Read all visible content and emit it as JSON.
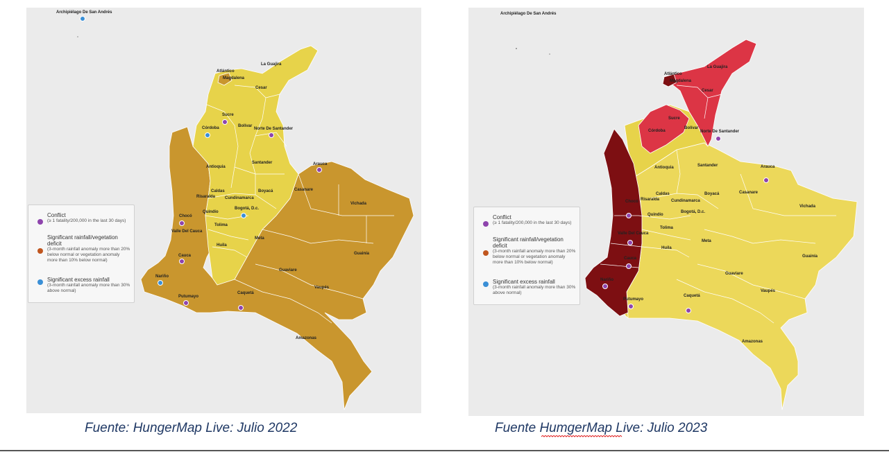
{
  "maps": [
    {
      "caption": "Fuente: HungerMap Live: Julio 2022",
      "colors": {
        "north": "#e7d34a",
        "south": "#c9962e",
        "highlight": "#c9962e",
        "border": "#ffffff"
      },
      "labels": [
        "Archipiélago De San Andrés",
        "La Guajira",
        "Atlántico",
        "Magdalena",
        "Cesar",
        "Sucre",
        "Córdoba",
        "Bolívar",
        "Norte De Santander",
        "Antioquia",
        "Santander",
        "Arauca",
        "Casanare",
        "Vichada",
        "Caldas",
        "Risaralda",
        "Chocó",
        "Boyacá",
        "Cundinamarca",
        "Quindío",
        "Bogotá, D.c.",
        "Tolima",
        "Valle Del Cauca",
        "Huila",
        "Meta",
        "Guainía",
        "Cauca",
        "Guaviare",
        "Nariño",
        "Vaupés",
        "Putumayo",
        "Caquetá",
        "Amazonas"
      ],
      "legend": {
        "conflict": {
          "title": "Conflict",
          "sub": "(≥ 1 fatality/200,000 in the last 30 days)",
          "color": "#8e44ad"
        },
        "deficit": {
          "title": "Significant rainfall/vegetation deficit",
          "sub": "(3-month rainfall anomaly more than 20% below normal or vegetation anomaly more than 10% below normal)",
          "color": "#c0561f"
        },
        "excess": {
          "title": "Significant excess rainfall",
          "sub": "(3-month rainfall anomaly more than 30% above normal)",
          "color": "#3a8fd6"
        }
      }
    },
    {
      "caption": "Fuente HumgerMap Live: Julio 2023",
      "caption_parts": [
        "Fuente ",
        "HumgerMap",
        " Live: Julio 2023"
      ],
      "colors": {
        "north": "#e7d34a",
        "south": "#ecd85a",
        "red": "#dc3545",
        "darkred": "#7d0f12",
        "border": "#ffffff"
      },
      "labels": [
        "Archipiélago De San Andrés",
        "La Guajira",
        "Atlántico",
        "Magdalena",
        "Cesar",
        "Sucre",
        "Córdoba",
        "Bolívar",
        "Norte De Santander",
        "Antioquia",
        "Santander",
        "Arauca",
        "Casanare",
        "Vichada",
        "Caldas",
        "Risaralda",
        "Chocó",
        "Boyacá",
        "Cundinamarca",
        "Quindío",
        "Bogotá, D.c.",
        "Tolima",
        "Valle Del Cauca",
        "Huila",
        "Meta",
        "Guainía",
        "Cauca",
        "Guaviare",
        "Nariño",
        "Vaupés",
        "Putumayo",
        "Caquetá",
        "Amazonas"
      ],
      "legend": {
        "conflict": {
          "title": "Conflict",
          "sub": "(≥ 1 fatality/200,000 in the last 30 days)",
          "color": "#8e44ad"
        },
        "deficit": {
          "title": "Significant rainfall/vegetation deficit",
          "sub": "(3-month rainfall anomaly more than 20% below normal or vegetation anomaly more than 10% below normal)",
          "color": "#c0561f"
        },
        "excess": {
          "title": "Significant excess rainfall",
          "sub": "(3-month rainfall anomaly more than 30% above normal)",
          "color": "#3a8fd6"
        }
      }
    }
  ],
  "markers": {
    "conflict_color": "#8e44ad",
    "excess_color": "#3a8fd6"
  }
}
